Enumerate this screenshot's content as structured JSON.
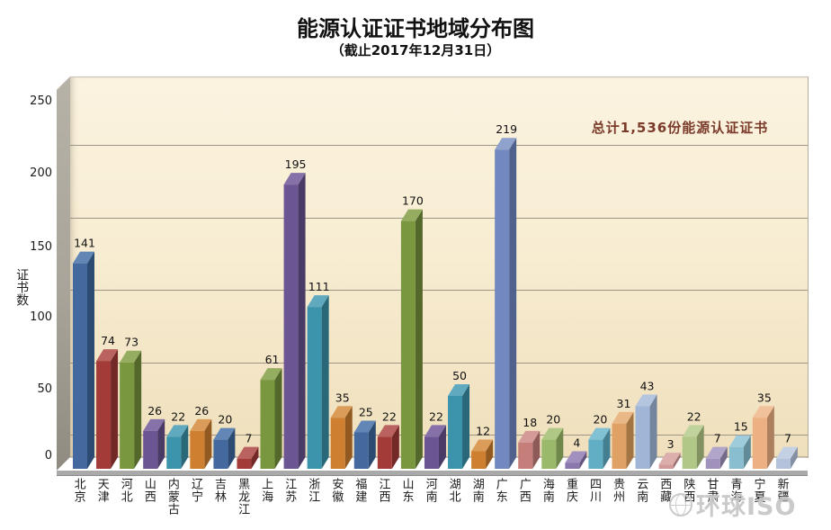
{
  "title": "能源认证证书地域分布图",
  "subtitle": "（截止2017年12月31日）",
  "annotation": "总计1,536份能源认证证书",
  "watermark": "环球ISO",
  "chart_data": {
    "type": "bar",
    "variant": "3d-clustered-column",
    "title": "能源认证证书地域分布图",
    "subtitle": "（截止2017年12月31日）",
    "xlabel": "",
    "ylabel": "证书数",
    "ylim": [
      0,
      250
    ],
    "yticks": [
      0,
      50,
      100,
      150,
      200,
      250
    ],
    "grid": true,
    "legend": "none",
    "annotation": "总计1,536份能源认证证书",
    "total": 1536,
    "categories": [
      "北京",
      "天津",
      "河北",
      "山西",
      "内蒙古",
      "辽宁",
      "吉林",
      "黑龙江",
      "上海",
      "江苏",
      "浙江",
      "安徽",
      "福建",
      "江西",
      "山东",
      "河南",
      "湖北",
      "湖南",
      "广东",
      "广西",
      "海南",
      "重庆",
      "四川",
      "贵州",
      "云南",
      "西藏",
      "陕西",
      "甘肃",
      "青海",
      "宁夏",
      "新疆"
    ],
    "values": [
      141,
      74,
      73,
      26,
      22,
      26,
      20,
      7,
      61,
      195,
      111,
      35,
      25,
      22,
      170,
      22,
      50,
      12,
      219,
      18,
      20,
      4,
      20,
      31,
      43,
      3,
      22,
      7,
      15,
      35,
      7
    ],
    "colors": {
      "plot_bg_top": "#FBF3E0",
      "plot_bg_bottom": "#EFDFBC",
      "gridline": "#9C9484",
      "floor": "#FFFFFF",
      "base_band": "#A9A9A9",
      "left_wall": "#A9A499",
      "annotation_text": "#7B3B2B",
      "value_label": "#111111",
      "palette_tiers": [
        [
          [
            "#44699E",
            "#2C4A72",
            "#6287B6"
          ],
          [
            "#A33C39",
            "#722928",
            "#B96260"
          ],
          [
            "#79973F",
            "#54682B",
            "#95AD60"
          ],
          [
            "#6B5593",
            "#493A66",
            "#8672A8"
          ],
          [
            "#3C93AC",
            "#296878",
            "#61A9BF"
          ],
          [
            "#CE7F30",
            "#925A21",
            "#DC9C59"
          ]
        ],
        [
          [
            "#7189BE",
            "#4F618C",
            "#8FA2CD"
          ],
          [
            "#C67E7B",
            "#8E5A58",
            "#D39A98"
          ],
          [
            "#9BB96B",
            "#6F874A",
            "#AFC886"
          ],
          [
            "#8A77AC",
            "#62547D",
            "#A08FBF"
          ],
          [
            "#61AEC5",
            "#437E91",
            "#81C1D4"
          ],
          [
            "#E0A164",
            "#A37545",
            "#E9B886"
          ]
        ],
        [
          [
            "#A1B6D6",
            "#75859E",
            "#B4C5E0"
          ],
          [
            "#D19A98",
            "#97706F",
            "#DCAEAC"
          ],
          [
            "#B1C787",
            "#81915F",
            "#C1D39D"
          ],
          [
            "#A092BD",
            "#746A8A",
            "#B1A5CA"
          ],
          [
            "#88BED0",
            "#628B99",
            "#9ECCDA"
          ],
          [
            "#ECB083",
            "#AC805F",
            "#F1C19C"
          ]
        ],
        [
          [
            "#B4C2DB",
            "#8590A3",
            "#C4D0E4"
          ],
          [
            "#DCB0AE",
            "#A58280",
            "#E4C1BF"
          ],
          [
            "#C2D39D",
            "#93A273",
            "#CFDDB2"
          ],
          [
            "#B2A6CA",
            "#857C99",
            "#C0B6D5"
          ],
          [
            "#9ECCDA",
            "#7499A5",
            "#B1D8E3"
          ],
          [
            "#F1C19C",
            "#B98F70",
            "#F5CFB1"
          ]
        ]
      ]
    }
  }
}
